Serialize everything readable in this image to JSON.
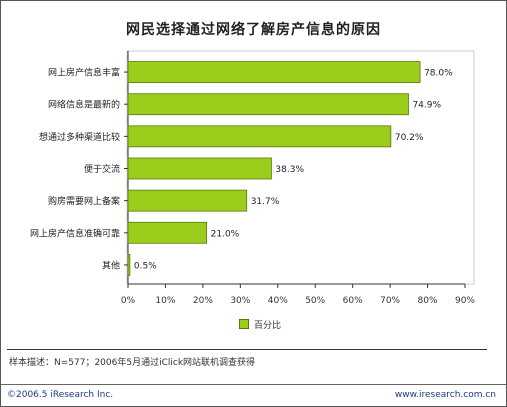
{
  "chart_data": {
    "type": "bar",
    "orientation": "horizontal",
    "title": "网民选择通过网络了解房产信息的原因",
    "categories": [
      "网上房产信息丰富",
      "网络信息是最新的",
      "想通过多种渠道比较",
      "便于交流",
      "购房需要网上备案",
      "网上房产信息准确可靠",
      "其他"
    ],
    "series": [
      {
        "name": "百分比",
        "values": [
          78.0,
          74.9,
          70.2,
          38.3,
          31.7,
          21.0,
          0.5
        ],
        "labels": [
          "78.0%",
          "74.9%",
          "70.2%",
          "38.3%",
          "31.7%",
          "21.0%",
          "0.5%"
        ]
      }
    ],
    "xlim": [
      0,
      90
    ],
    "x_ticks": [
      "0%",
      "10%",
      "20%",
      "30%",
      "40%",
      "50%",
      "60%",
      "70%",
      "80%",
      "90%"
    ],
    "xlabel": "",
    "ylabel": "",
    "grid": false,
    "legend_position": "bottom",
    "bar_color": "#9acd1c",
    "bar_border_color": "#5a7a00"
  },
  "notes": {
    "sample": "样本描述：N=577；2006年5月通过iClick网站联机调查获得"
  },
  "footer": {
    "copyright": "©2006.5 iResearch Inc.",
    "url": "www.iresearch.com.cn"
  }
}
